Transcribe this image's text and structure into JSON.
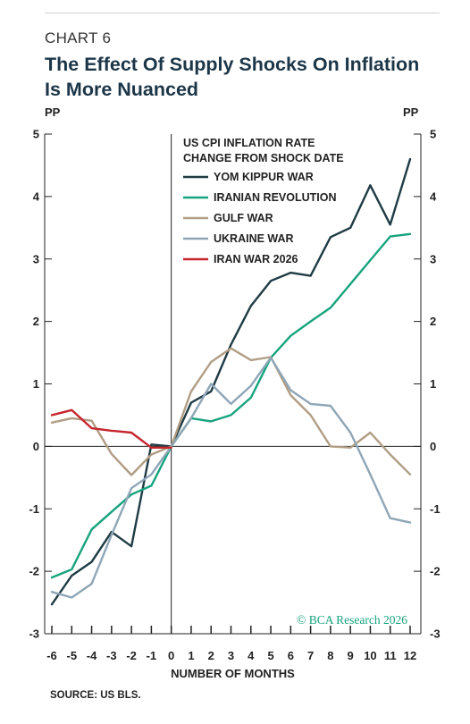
{
  "header": {
    "label": "CHART 6",
    "title_line1": "The Effect Of Supply Shocks On Inflation",
    "title_line2": "Is More Nuanced"
  },
  "footer": {
    "source": "SOURCE: US BLS.",
    "copyright": "© BCA Research 2026"
  },
  "colors": {
    "axis": "#222222",
    "background": "#ffffff"
  },
  "chart_data": {
    "type": "line",
    "title": "",
    "legend_title": [
      "US CPI INFLATION RATE",
      "CHANGE FROM SHOCK DATE"
    ],
    "xlabel": "NUMBER OF MONTHS",
    "ylabel_left": "PP",
    "ylabel_right": "PP",
    "xlim": [
      -6,
      12
    ],
    "ylim": [
      -3,
      5
    ],
    "x_ticks": [
      -6,
      -5,
      -4,
      -3,
      -2,
      -1,
      0,
      1,
      2,
      3,
      4,
      5,
      6,
      7,
      8,
      9,
      10,
      11,
      12
    ],
    "y_ticks": [
      -3,
      -2,
      -1,
      0,
      1,
      2,
      3,
      4,
      5
    ],
    "grid": false,
    "legend_position": "top-center",
    "series": [
      {
        "name": "YOM KIPPUR WAR",
        "color": "#1f3b44",
        "x": [
          -6,
          -5,
          -4,
          -3,
          -2,
          -1,
          0,
          1,
          2,
          3,
          4,
          5,
          6,
          7,
          8,
          9,
          10,
          11,
          12
        ],
        "values": [
          -2.53,
          -2.07,
          -1.85,
          -1.37,
          -1.6,
          0.03,
          0,
          0.7,
          0.88,
          1.63,
          2.25,
          2.65,
          2.78,
          2.73,
          3.35,
          3.5,
          4.18,
          3.55,
          4.6
        ]
      },
      {
        "name": "IRANIAN REVOLUTION",
        "color": "#17a37e",
        "x": [
          -6,
          -5,
          -4,
          -3,
          -2,
          -1,
          0,
          1,
          2,
          3,
          4,
          5,
          6,
          7,
          8,
          9,
          10,
          11,
          12
        ],
        "values": [
          -2.1,
          -1.97,
          -1.33,
          -1.05,
          -0.77,
          -0.63,
          0,
          0.45,
          0.4,
          0.5,
          0.78,
          1.42,
          1.77,
          2.0,
          2.22,
          2.6,
          2.98,
          3.36,
          3.4
        ]
      },
      {
        "name": "GULF WAR",
        "color": "#b09d84",
        "x": [
          -6,
          -5,
          -4,
          -3,
          -2,
          -1,
          0,
          1,
          2,
          3,
          4,
          5,
          6,
          7,
          8,
          9,
          10,
          11,
          12
        ],
        "values": [
          0.38,
          0.45,
          0.41,
          -0.12,
          -0.46,
          -0.13,
          0,
          0.88,
          1.35,
          1.57,
          1.38,
          1.43,
          0.82,
          0.5,
          0.0,
          -0.02,
          0.22,
          -0.13,
          -0.45
        ]
      },
      {
        "name": "UKRAINE WAR",
        "color": "#8fa6b7",
        "x": [
          -6,
          -5,
          -4,
          -3,
          -2,
          -1,
          0,
          1,
          2,
          3,
          4,
          5,
          6,
          7,
          8,
          9,
          10,
          11,
          12
        ],
        "values": [
          -2.33,
          -2.42,
          -2.2,
          -1.42,
          -0.67,
          -0.45,
          0,
          0.45,
          1.0,
          0.68,
          0.97,
          1.42,
          0.9,
          0.68,
          0.65,
          0.22,
          -0.45,
          -1.15,
          -1.22
        ]
      },
      {
        "name": "IRAN WAR 2026",
        "color": "#c6262e",
        "x": [
          -6,
          -5,
          -4,
          -3,
          -2,
          -1,
          0
        ],
        "values": [
          0.5,
          0.58,
          0.29,
          0.25,
          0.22,
          -0.02,
          -0.02
        ]
      }
    ]
  }
}
